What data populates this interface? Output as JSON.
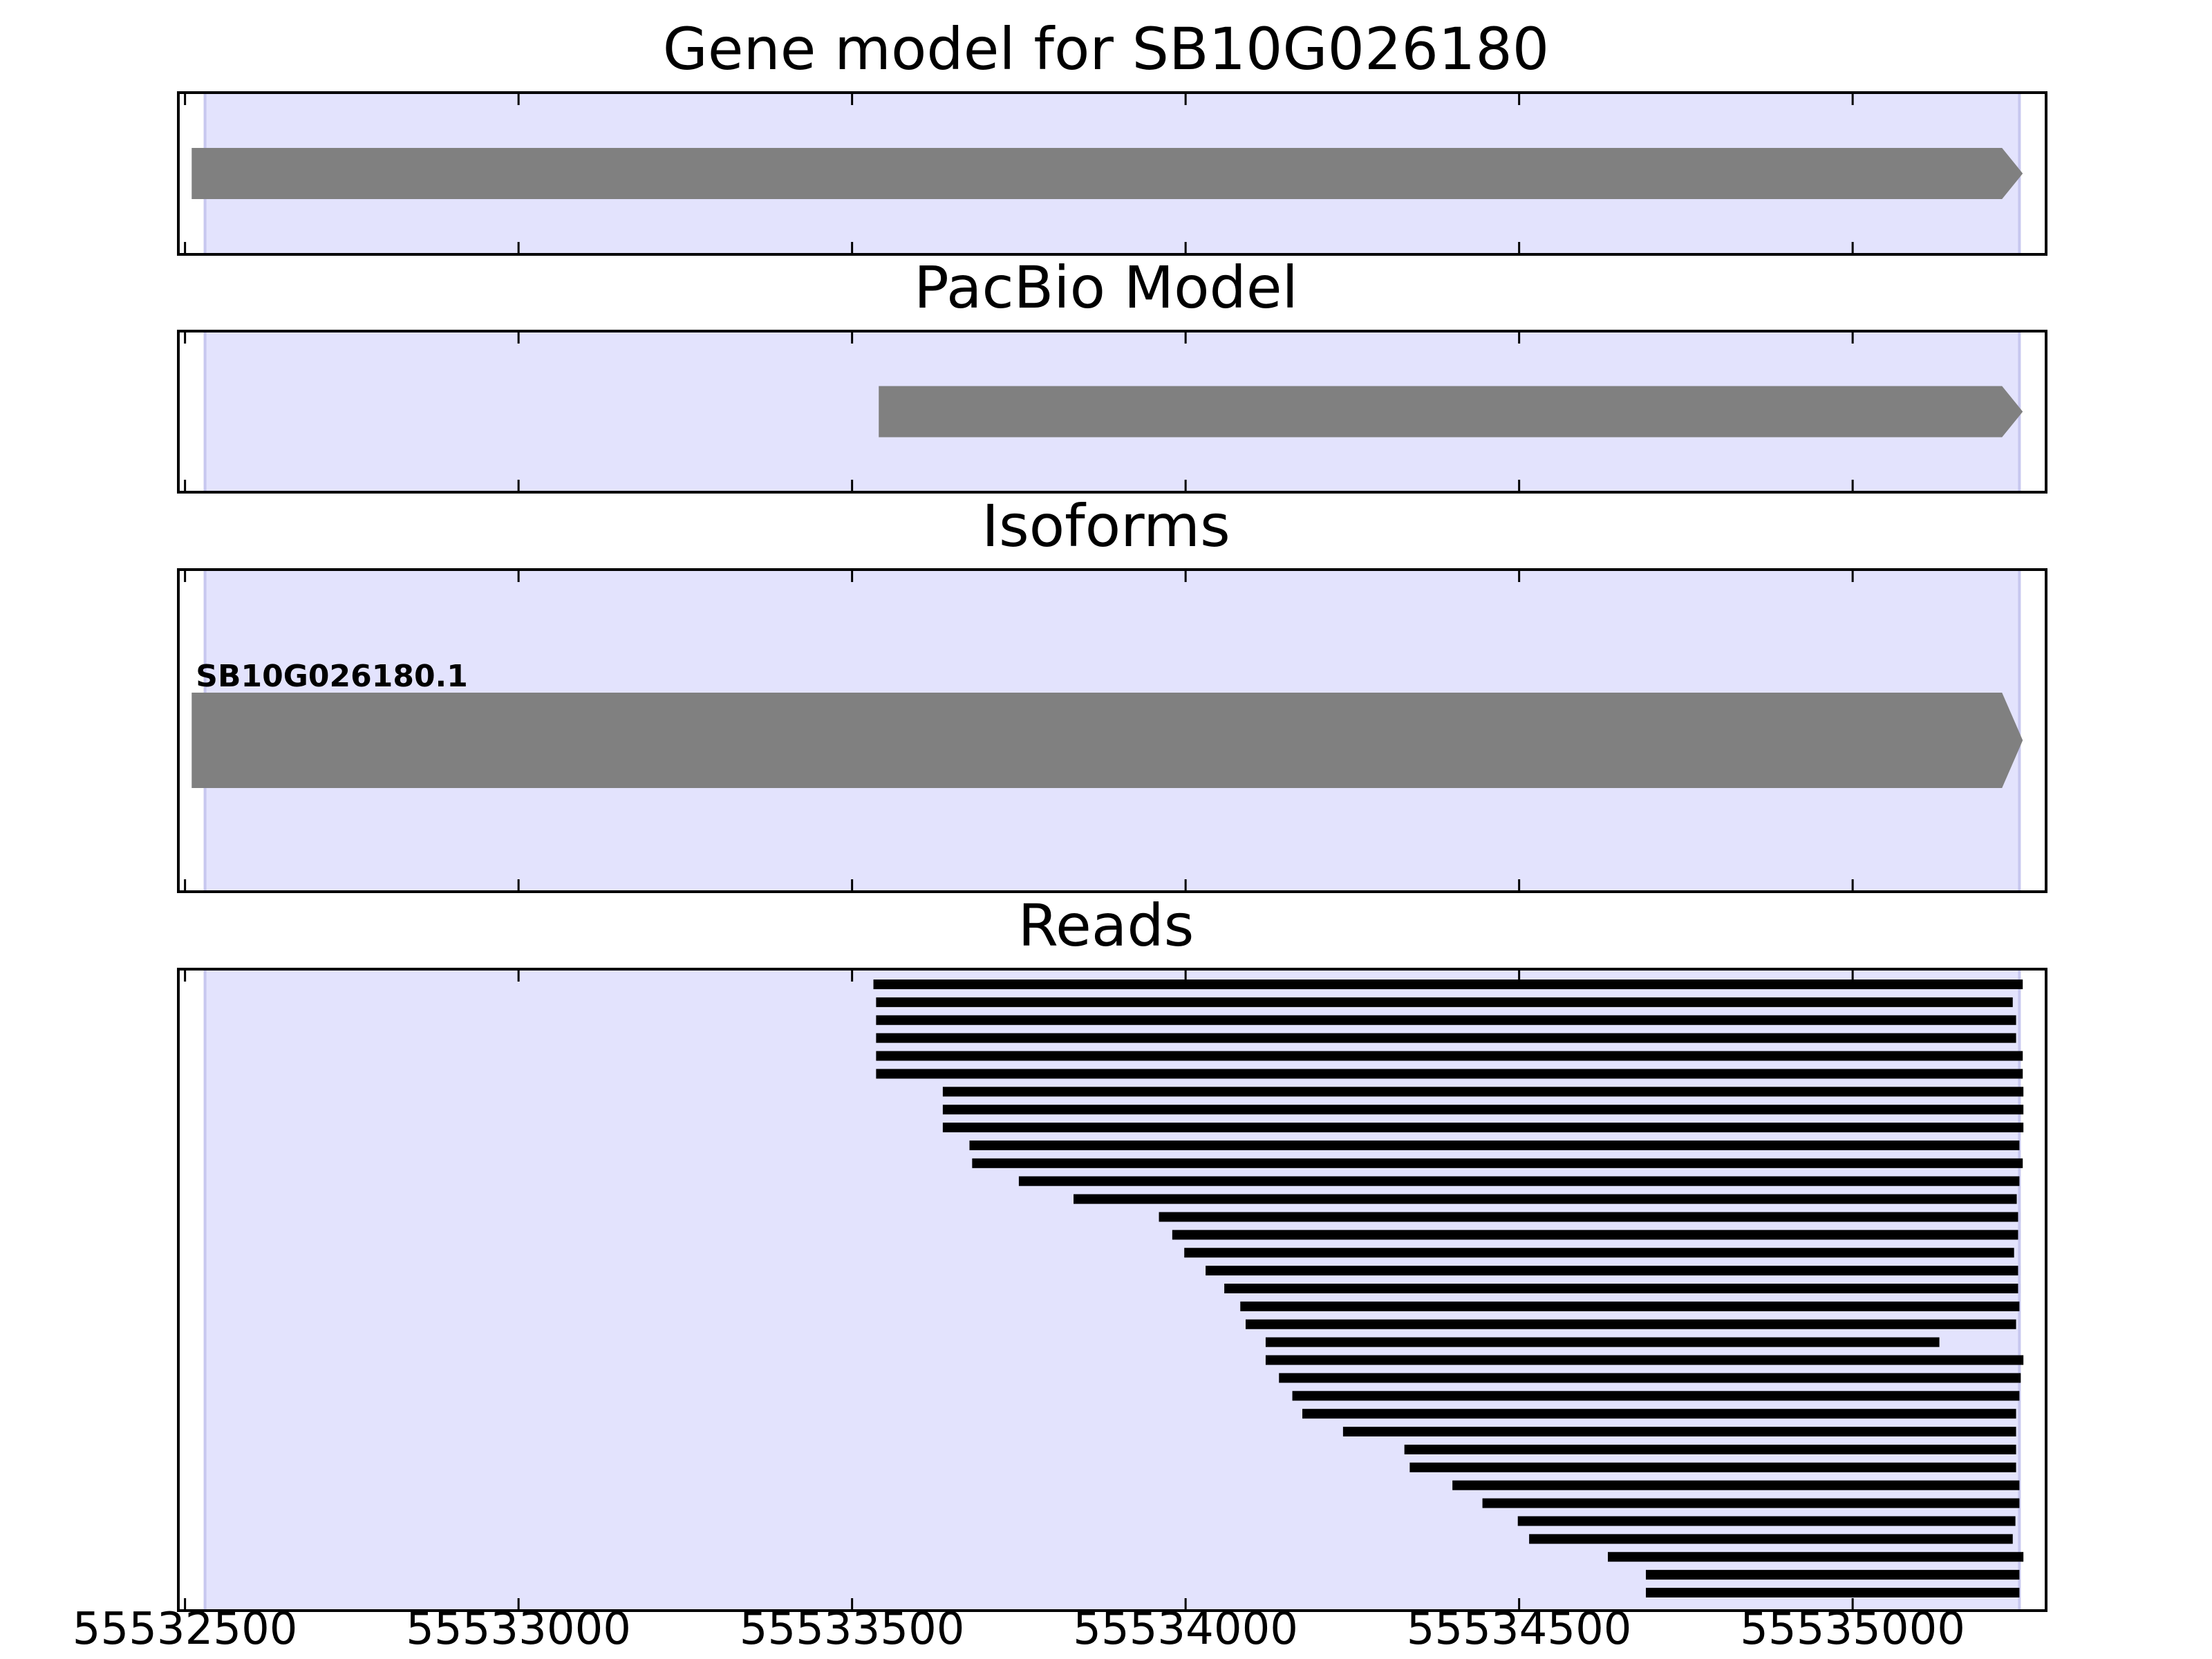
{
  "chart_data": {
    "type": "gene_track",
    "x_tick_labels": [
      "55532500",
      "55533000",
      "55533500",
      "55534000",
      "55534500",
      "55535000"
    ],
    "x_ticks": [
      55532500,
      55533000,
      55533500,
      55534000,
      55534500,
      55535000
    ],
    "xlim": [
      55532490,
      55535290
    ],
    "gene_region": [
      55532530,
      55535250
    ],
    "colors": {
      "region_fill": "#e3e3fd",
      "region_edge": "#c7c7ef",
      "feature": "#808080",
      "read": "#000000"
    },
    "panels": [
      {
        "title": "Gene model for SB10G026180",
        "features": [
          {
            "start": 55532510,
            "end": 55535255,
            "strand": "+"
          }
        ]
      },
      {
        "title": "PacBio Model",
        "features": [
          {
            "start": 55533540,
            "end": 55535255,
            "strand": "+"
          }
        ]
      },
      {
        "title": "Isoforms",
        "features": [
          {
            "start": 55532510,
            "end": 55535255,
            "strand": "+",
            "label": "SB10G026180.1"
          }
        ]
      },
      {
        "title": "Reads",
        "reads": [
          [
            55533532,
            55535255
          ],
          [
            55533536,
            55535240
          ],
          [
            55533536,
            55535245
          ],
          [
            55533536,
            55535245
          ],
          [
            55533536,
            55535255
          ],
          [
            55533536,
            55535255
          ],
          [
            55533636,
            55535256
          ],
          [
            55533636,
            55535256
          ],
          [
            55533636,
            55535256
          ],
          [
            55533676,
            55535250
          ],
          [
            55533680,
            55535255
          ],
          [
            55533750,
            55535250
          ],
          [
            55533832,
            55535246
          ],
          [
            55533960,
            55535248
          ],
          [
            55533980,
            55535248
          ],
          [
            55533998,
            55535242
          ],
          [
            55534030,
            55535248
          ],
          [
            55534058,
            55535248
          ],
          [
            55534082,
            55535250
          ],
          [
            55534090,
            55535245
          ],
          [
            55534120,
            55535130
          ],
          [
            55534120,
            55535256
          ],
          [
            55534140,
            55535252
          ],
          [
            55534160,
            55535250
          ],
          [
            55534175,
            55535245
          ],
          [
            55534236,
            55535245
          ],
          [
            55534328,
            55535245
          ],
          [
            55534336,
            55535245
          ],
          [
            55534400,
            55535250
          ],
          [
            55534445,
            55535250
          ],
          [
            55534498,
            55535244
          ],
          [
            55534515,
            55535240
          ],
          [
            55534633,
            55535256
          ],
          [
            55534690,
            55535250
          ],
          [
            55534690,
            55535250
          ]
        ]
      }
    ]
  }
}
